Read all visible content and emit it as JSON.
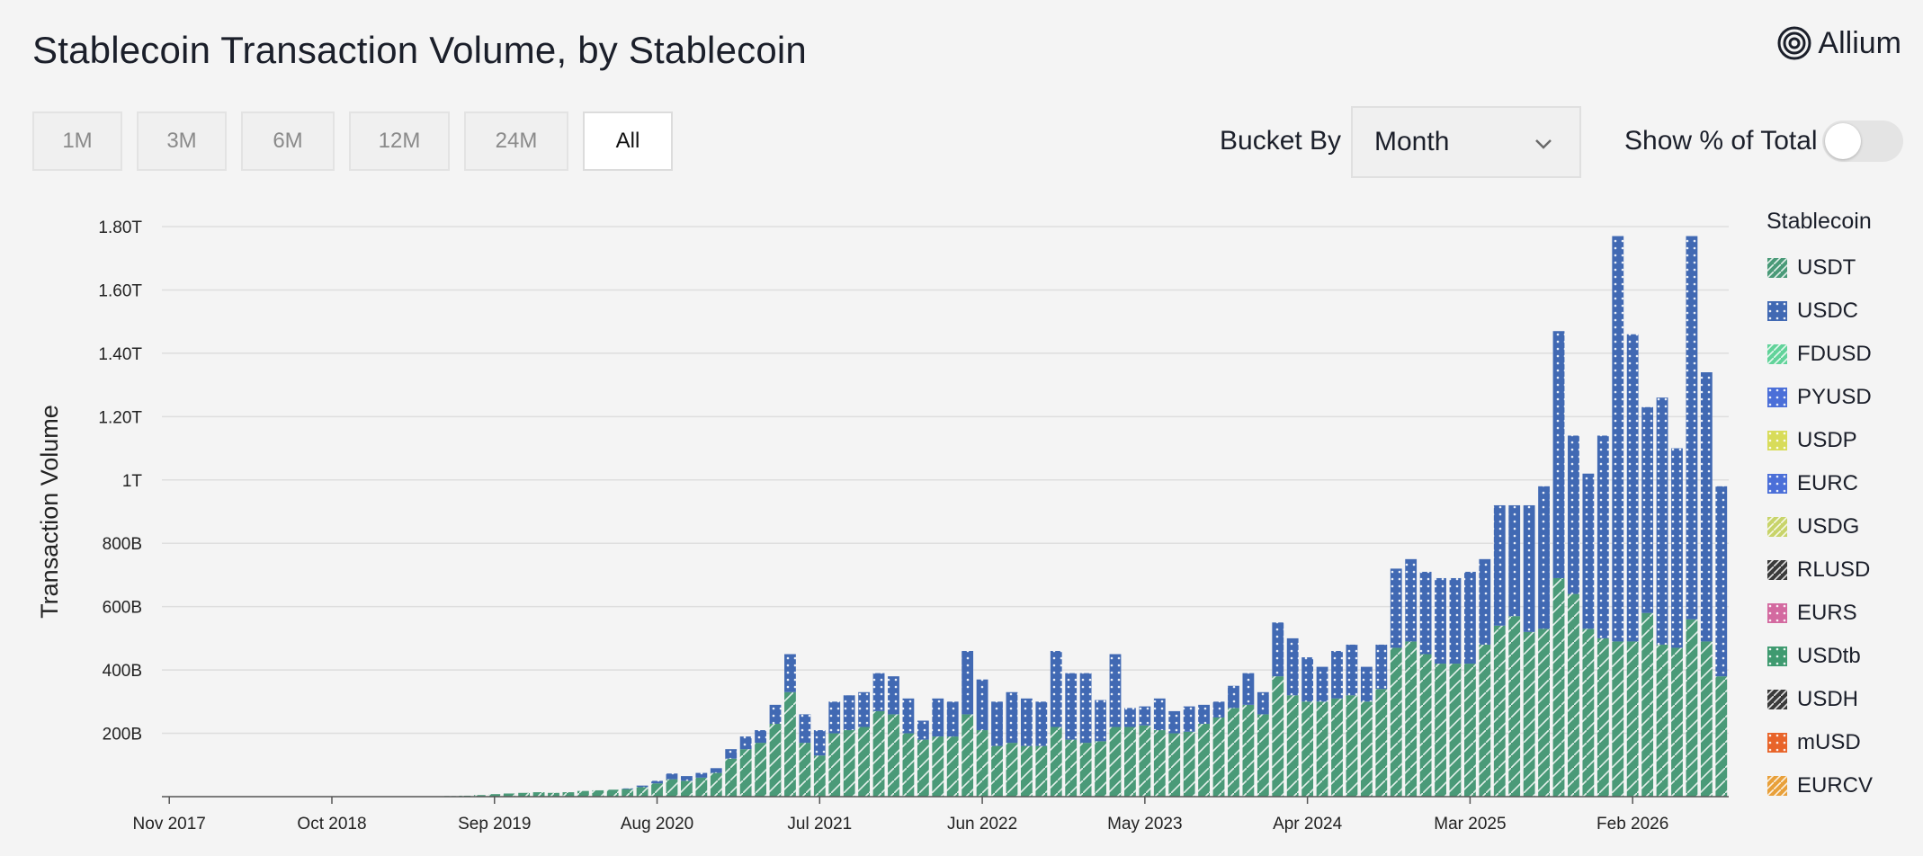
{
  "header": {
    "title": "Stablecoin Transaction Volume, by Stablecoin",
    "brand": "Allium"
  },
  "controls": {
    "ranges": [
      {
        "label": "1M",
        "active": false
      },
      {
        "label": "3M",
        "active": false
      },
      {
        "label": "6M",
        "active": false
      },
      {
        "label": "12M",
        "active": false
      },
      {
        "label": "24M",
        "active": false
      },
      {
        "label": "All",
        "active": true
      }
    ],
    "bucket_label": "Bucket By",
    "bucket_value": "Month",
    "show_pct_label": "Show % of Total",
    "show_pct_on": false
  },
  "legend": {
    "title": "Stablecoin",
    "items": [
      {
        "label": "USDT",
        "color": "#4a9a78",
        "pattern": "diag"
      },
      {
        "label": "USDC",
        "color": "#4169b3",
        "pattern": "dots"
      },
      {
        "label": "FDUSD",
        "color": "#62d39a",
        "pattern": "diag"
      },
      {
        "label": "PYUSD",
        "color": "#4b6fd8",
        "pattern": "dots"
      },
      {
        "label": "USDP",
        "color": "#d8dc5a",
        "pattern": "dots"
      },
      {
        "label": "EURC",
        "color": "#4b6fd8",
        "pattern": "dots"
      },
      {
        "label": "USDG",
        "color": "#c8d46a",
        "pattern": "diag"
      },
      {
        "label": "RLUSD",
        "color": "#3a3a3a",
        "pattern": "diag"
      },
      {
        "label": "EURS",
        "color": "#d36aa0",
        "pattern": "dots"
      },
      {
        "label": "USDtb",
        "color": "#3f9a70",
        "pattern": "dots"
      },
      {
        "label": "USDH",
        "color": "#3a3a3a",
        "pattern": "diag"
      },
      {
        "label": "mUSD",
        "color": "#e8642a",
        "pattern": "dots"
      },
      {
        "label": "EURCV",
        "color": "#e8a03a",
        "pattern": "diag"
      }
    ]
  },
  "chart_data": {
    "type": "bar",
    "stacked": true,
    "ylabel": "Transaction Volume",
    "ylim": [
      0,
      1800
    ],
    "y_unit": "B",
    "y_ticks": [
      {
        "value": 200,
        "label": "200B"
      },
      {
        "value": 400,
        "label": "400B"
      },
      {
        "value": 600,
        "label": "600B"
      },
      {
        "value": 800,
        "label": "800B"
      },
      {
        "value": 1000,
        "label": "1T"
      },
      {
        "value": 1200,
        "label": "1.20T"
      },
      {
        "value": 1400,
        "label": "1.40T"
      },
      {
        "value": 1600,
        "label": "1.60T"
      },
      {
        "value": 1800,
        "label": "1.80T"
      }
    ],
    "x_ticks": [
      {
        "index": 0,
        "label": "Nov 2017"
      },
      {
        "index": 11,
        "label": "Oct 2018"
      },
      {
        "index": 22,
        "label": "Sep 2019"
      },
      {
        "index": 33,
        "label": "Aug 2020"
      },
      {
        "index": 44,
        "label": "Jul 2021"
      },
      {
        "index": 55,
        "label": "Jun 2022"
      },
      {
        "index": 66,
        "label": "May 2023"
      },
      {
        "index": 77,
        "label": "Apr 2024"
      },
      {
        "index": 88,
        "label": "Mar 2025"
      },
      {
        "index": 99,
        "label": "Feb 2026"
      }
    ],
    "grid": true,
    "legend_position": "right",
    "series": [
      {
        "name": "USDT",
        "values": [
          0,
          0,
          0,
          0,
          0,
          0,
          0,
          0,
          0,
          0,
          0,
          0,
          0,
          0,
          0,
          0,
          0,
          0,
          1,
          2,
          3,
          5,
          8,
          10,
          12,
          14,
          12,
          14,
          18,
          20,
          22,
          24,
          30,
          42,
          55,
          50,
          60,
          75,
          120,
          150,
          170,
          230,
          330,
          170,
          130,
          200,
          210,
          220,
          270,
          260,
          200,
          180,
          190,
          190,
          260,
          210,
          160,
          170,
          160,
          160,
          220,
          180,
          170,
          175,
          220,
          220,
          225,
          210,
          200,
          205,
          230,
          250,
          280,
          290,
          260,
          380,
          320,
          300,
          300,
          310,
          320,
          300,
          340,
          470,
          490,
          450,
          420,
          420,
          420,
          480,
          540,
          570,
          520,
          530,
          690,
          640,
          530,
          500,
          490,
          490,
          580,
          480,
          470,
          560,
          490,
          380
        ]
      },
      {
        "name": "USDC",
        "values": [
          0,
          0,
          0,
          0,
          0,
          0,
          0,
          0,
          0,
          0,
          0,
          0,
          0,
          0,
          0,
          0,
          0,
          0,
          0,
          0,
          0,
          0,
          0,
          0,
          0,
          0,
          0,
          0,
          0,
          0,
          0,
          2,
          5,
          8,
          18,
          15,
          15,
          15,
          30,
          40,
          40,
          60,
          120,
          90,
          80,
          100,
          110,
          110,
          120,
          120,
          110,
          60,
          120,
          110,
          200,
          160,
          140,
          160,
          150,
          140,
          240,
          210,
          220,
          130,
          230,
          60,
          60,
          100,
          70,
          80,
          60,
          50,
          70,
          100,
          70,
          170,
          180,
          140,
          110,
          150,
          160,
          110,
          140,
          250,
          260,
          260,
          270,
          270,
          290,
          270,
          380,
          350,
          400,
          450,
          780,
          500,
          490,
          640,
          1280,
          970,
          650,
          780,
          630,
          1210,
          850,
          600
        ]
      }
    ]
  }
}
